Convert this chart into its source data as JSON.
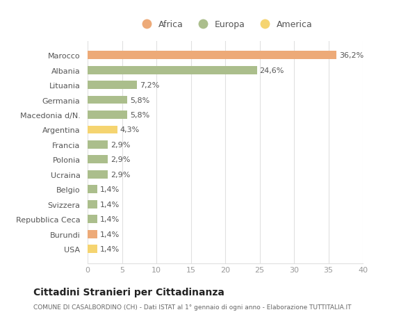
{
  "countries": [
    "Marocco",
    "Albania",
    "Lituania",
    "Germania",
    "Macedonia d/N.",
    "Argentina",
    "Francia",
    "Polonia",
    "Ucraina",
    "Belgio",
    "Svizzera",
    "Repubblica Ceca",
    "Burundi",
    "USA"
  ],
  "values": [
    36.2,
    24.6,
    7.2,
    5.8,
    5.8,
    4.3,
    2.9,
    2.9,
    2.9,
    1.4,
    1.4,
    1.4,
    1.4,
    1.4
  ],
  "labels": [
    "36,2%",
    "24,6%",
    "7,2%",
    "5,8%",
    "5,8%",
    "4,3%",
    "2,9%",
    "2,9%",
    "2,9%",
    "1,4%",
    "1,4%",
    "1,4%",
    "1,4%",
    "1,4%"
  ],
  "continents": [
    "Africa",
    "Europa",
    "Europa",
    "Europa",
    "Europa",
    "America",
    "Europa",
    "Europa",
    "Europa",
    "Europa",
    "Europa",
    "Europa",
    "Africa",
    "America"
  ],
  "colors": {
    "Africa": "#EDAA78",
    "Europa": "#ABBE8C",
    "America": "#F5D470"
  },
  "xlim": [
    0,
    40
  ],
  "xticks": [
    0,
    5,
    10,
    15,
    20,
    25,
    30,
    35,
    40
  ],
  "title": "Cittadini Stranieri per Cittadinanza",
  "subtitle": "COMUNE DI CASALBORDINO (CH) - Dati ISTAT al 1° gennaio di ogni anno - Elaborazione TUTTITALIA.IT",
  "bg_color": "#ffffff",
  "grid_color": "#e0e0e0",
  "label_fontsize": 8.0,
  "ytick_fontsize": 8.0,
  "xtick_fontsize": 8.0,
  "bar_height": 0.55,
  "legend_order": [
    "Africa",
    "Europa",
    "America"
  ]
}
